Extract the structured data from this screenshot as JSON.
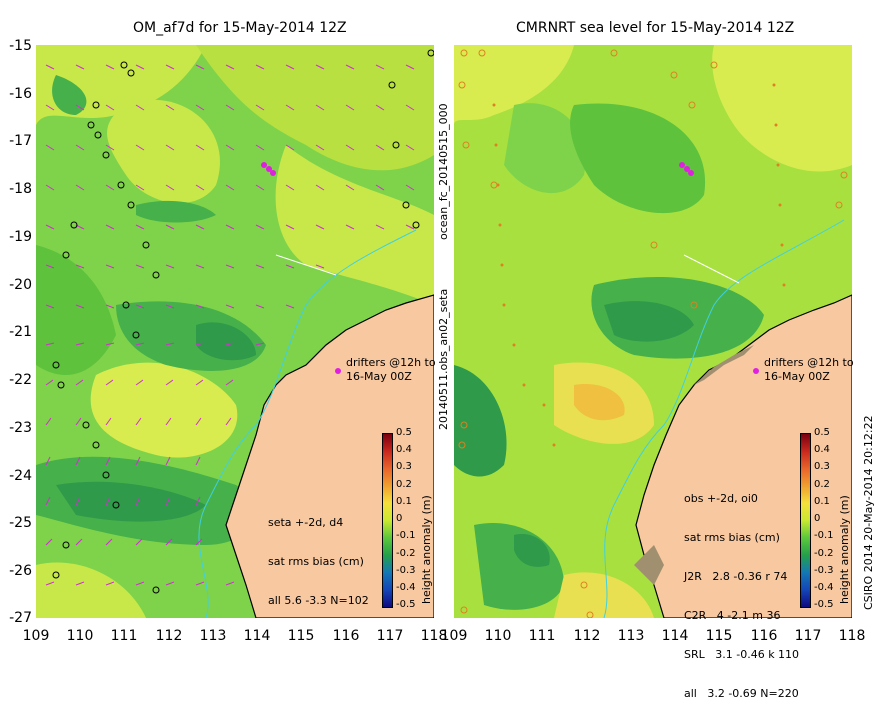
{
  "left_panel": {
    "title": "OM_af7d for 15-May-2014 12Z",
    "drifter_note_line1": "drifters @12h to",
    "drifter_note_line2": "16-May 00Z",
    "stats": [
      "seta +-2d, d4",
      "sat rms bias (cm)",
      "all 5.6 -3.3 N=102"
    ],
    "colorbar_label": "height anomaly (m)"
  },
  "right_panel": {
    "title": "CMRNRT sea level  for 15-May-2014 12Z",
    "drifter_note_line1": "drifters @12h to",
    "drifter_note_line2": "16-May 00Z",
    "stats": [
      "obs +-2d, oi0",
      "sat rms bias (cm)",
      "J2R   2.8 -0.36 r 74",
      "C2R   4 -2.1 m 36",
      "SRL   3.1 -0.46 k 110",
      "all   3.2 -0.69 N=220"
    ],
    "colorbar_label": "height anomaly (m)"
  },
  "side_labels": {
    "upper": "ocean_fc_20140515_000",
    "lower": "20140511.obs_an02_seta",
    "right_credit": "CSIRO 2014  20-May-2014 20:12:22"
  },
  "axes": {
    "x_ticks": [
      "109",
      "110",
      "111",
      "112",
      "113",
      "114",
      "115",
      "116",
      "117",
      "118"
    ],
    "y_ticks": [
      "-15",
      "-16",
      "-17",
      "-18",
      "-19",
      "-20",
      "-21",
      "-22",
      "-23",
      "-24",
      "-25",
      "-26",
      "-27"
    ],
    "x_range": [
      109,
      118
    ],
    "y_range": [
      -27,
      -15
    ]
  },
  "colorbar": {
    "ticks": [
      "0.5",
      "0.4",
      "0.3",
      "0.2",
      "0.1",
      "0",
      "-0.1",
      "-0.2",
      "-0.3",
      "-0.4",
      "-0.5"
    ],
    "range": [
      -0.5,
      0.5
    ]
  },
  "colors": {
    "land": "#f8c8a0",
    "coast": "#000000",
    "drifter": "#e020e0",
    "shelf_line": "#40d0e0",
    "vector": "#d030d0"
  }
}
